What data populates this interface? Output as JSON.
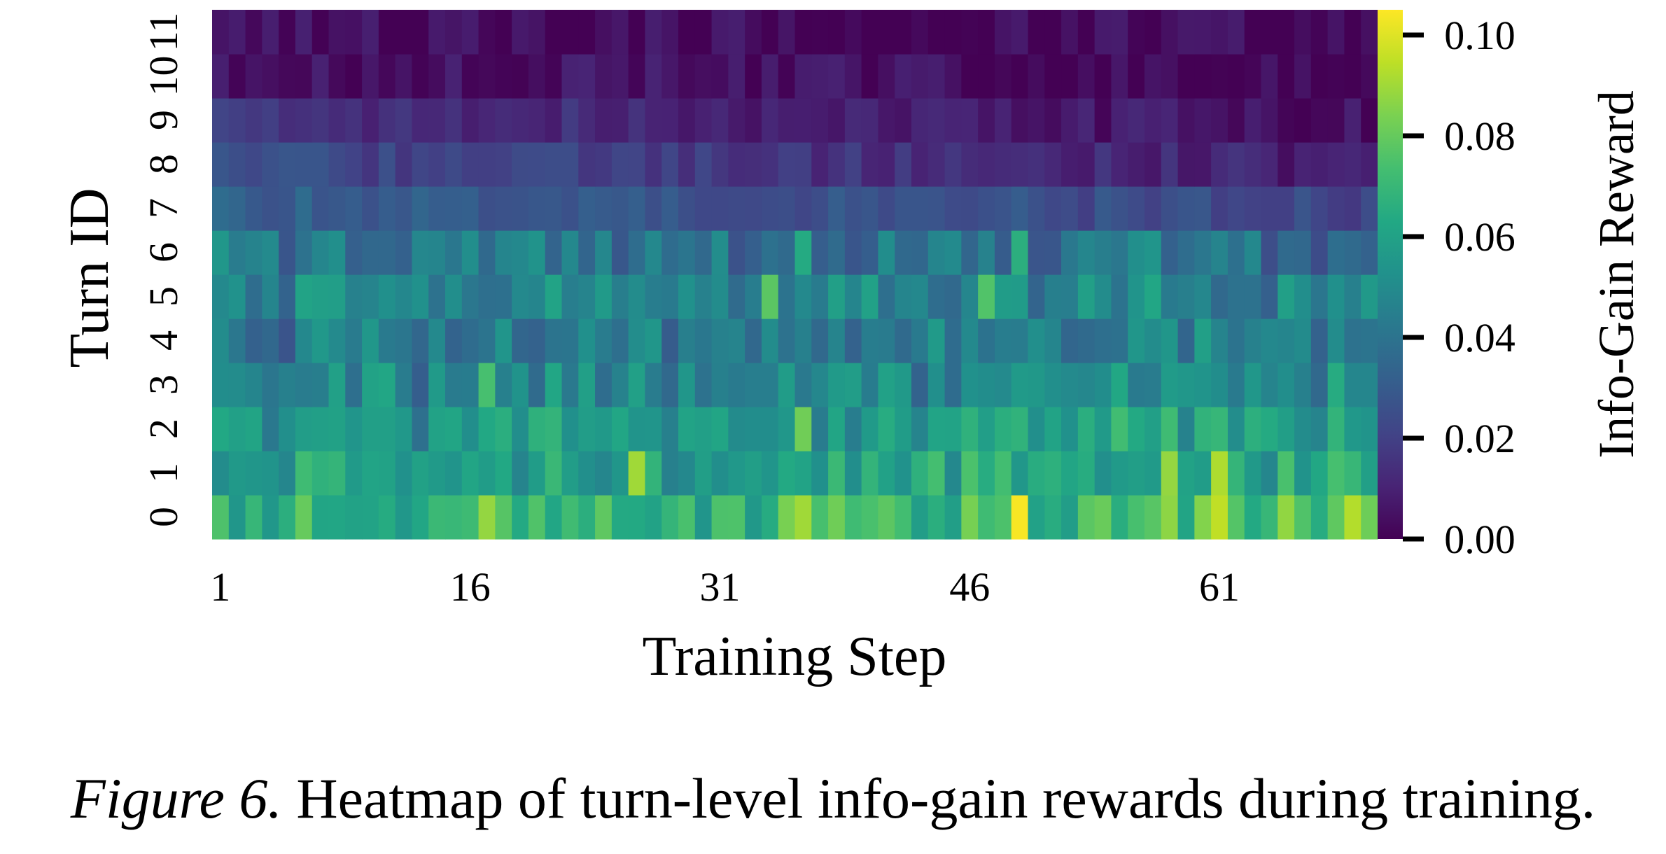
{
  "chart_data": {
    "type": "heatmap",
    "xlabel": "Training Step",
    "ylabel": "Turn ID",
    "colorbar_label": "Info-Gain Reward",
    "colormap": "viridis",
    "vmin": 0.0,
    "vmax": 0.105,
    "x_range": [
      1,
      70
    ],
    "x_tick_labels": [
      "1",
      "16",
      "31",
      "46",
      "61"
    ],
    "y_tick_labels": [
      "0",
      "1",
      "2",
      "3",
      "4",
      "5",
      "6",
      "7",
      "8",
      "9",
      "10",
      "11"
    ],
    "colorbar_tick_labels": [
      "0.00",
      "0.02",
      "0.04",
      "0.06",
      "0.08",
      "0.10"
    ],
    "colorbar_ticks": [
      0.0,
      0.02,
      0.04,
      0.06,
      0.08,
      0.1
    ],
    "row_means_by_turn": [
      0.066,
      0.058,
      0.054,
      0.046,
      0.042,
      0.046,
      0.042,
      0.032,
      0.024,
      0.016,
      0.006,
      0.004
    ],
    "row_means_late_steps": [
      0.074,
      0.064,
      0.06,
      0.05,
      0.046,
      0.048,
      0.04,
      0.022,
      0.008,
      0.004,
      0.002,
      0.002
    ],
    "highlights": [
      {
        "turn": 0,
        "step": 49,
        "value": 0.104
      },
      {
        "turn": 0,
        "step": 61,
        "value": 0.095
      },
      {
        "turn": 0,
        "step": 69,
        "value": 0.093
      },
      {
        "turn": 0,
        "step": 36,
        "value": 0.09
      },
      {
        "turn": 0,
        "step": 17,
        "value": 0.088
      },
      {
        "turn": 1,
        "step": 61,
        "value": 0.092
      },
      {
        "turn": 1,
        "step": 26,
        "value": 0.09
      },
      {
        "turn": 1,
        "step": 58,
        "value": 0.088
      },
      {
        "turn": 2,
        "step": 36,
        "value": 0.082
      },
      {
        "turn": 5,
        "step": 34,
        "value": 0.078
      },
      {
        "turn": 5,
        "step": 47,
        "value": 0.076
      },
      {
        "turn": 6,
        "step": 36,
        "value": 0.064
      },
      {
        "turn": 6,
        "step": 49,
        "value": 0.066
      },
      {
        "turn": 3,
        "step": 17,
        "value": 0.074
      }
    ]
  },
  "caption": {
    "label": "Figure 6.",
    "text": "Heatmap of turn-level info-gain rewards during training."
  }
}
